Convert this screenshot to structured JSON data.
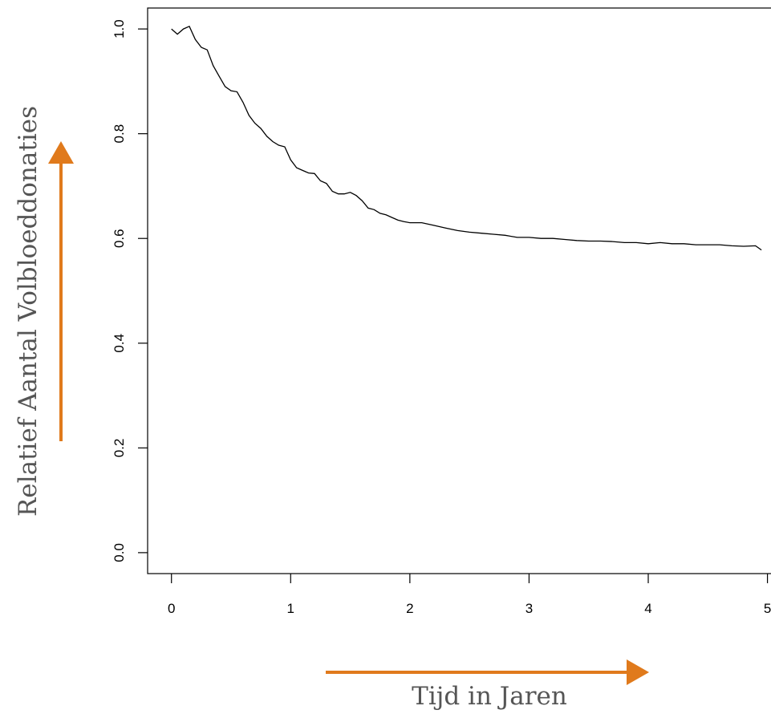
{
  "chart_data": {
    "type": "line",
    "xlabel": "Tijd in Jaren",
    "ylabel": "Relatief Aantal Volbloeddonaties",
    "xlim": [
      -0.2,
      5.05
    ],
    "ylim": [
      -0.04,
      1.04
    ],
    "x_ticks": [
      "0",
      "1",
      "2",
      "3",
      "4",
      "5"
    ],
    "y_ticks": [
      "0.0",
      "0.2",
      "0.4",
      "0.6",
      "0.8",
      "1.0"
    ],
    "grid": false,
    "line_color": "#000000",
    "arrow_color": "#e07a1c",
    "series": [
      {
        "x": [
          0.0,
          0.05,
          0.1,
          0.15,
          0.2,
          0.25,
          0.3,
          0.35,
          0.4,
          0.45,
          0.5,
          0.55,
          0.6,
          0.65,
          0.7,
          0.75,
          0.8,
          0.85,
          0.9,
          0.95,
          1.0,
          1.05,
          1.1,
          1.15,
          1.2,
          1.25,
          1.3,
          1.35,
          1.4,
          1.45,
          1.5,
          1.55,
          1.6,
          1.65,
          1.7,
          1.75,
          1.8,
          1.85,
          1.9,
          1.95,
          2.0,
          2.1,
          2.2,
          2.3,
          2.4,
          2.5,
          2.6,
          2.7,
          2.8,
          2.9,
          3.0,
          3.1,
          3.2,
          3.3,
          3.4,
          3.5,
          3.6,
          3.7,
          3.8,
          3.9,
          4.0,
          4.1,
          4.2,
          4.3,
          4.4,
          4.5,
          4.6,
          4.7,
          4.8,
          4.9,
          4.95
        ],
        "y": [
          1.0,
          0.99,
          1.0,
          1.005,
          0.98,
          0.965,
          0.96,
          0.93,
          0.91,
          0.89,
          0.882,
          0.88,
          0.86,
          0.835,
          0.82,
          0.81,
          0.795,
          0.785,
          0.778,
          0.775,
          0.75,
          0.735,
          0.73,
          0.725,
          0.724,
          0.71,
          0.705,
          0.69,
          0.685,
          0.685,
          0.688,
          0.682,
          0.672,
          0.658,
          0.655,
          0.648,
          0.645,
          0.64,
          0.635,
          0.632,
          0.63,
          0.63,
          0.625,
          0.62,
          0.615,
          0.612,
          0.61,
          0.608,
          0.606,
          0.602,
          0.602,
          0.6,
          0.6,
          0.598,
          0.596,
          0.595,
          0.595,
          0.594,
          0.592,
          0.592,
          0.59,
          0.592,
          0.59,
          0.59,
          0.588,
          0.588,
          0.588,
          0.586,
          0.585,
          0.586,
          0.578
        ]
      }
    ]
  }
}
